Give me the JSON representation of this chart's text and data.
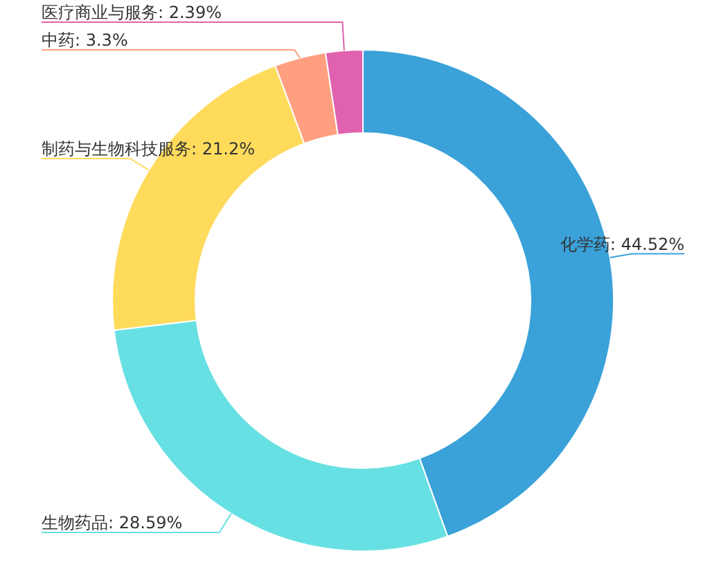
{
  "chart_data": {
    "type": "donut",
    "categories": [
      "化学药",
      "生物药品",
      "制药与生物科技服务",
      "中药",
      "医疗商业与服务"
    ],
    "values": [
      44.52,
      28.59,
      21.2,
      3.3,
      2.39
    ],
    "colors": [
      "#3aa1d9",
      "#67e0e3",
      "#ffdb5c",
      "#ff9f7f",
      "#e062ae"
    ],
    "value_labels": [
      "44.52%",
      "28.59%",
      "21.2%",
      "3.3%",
      "2.39%"
    ]
  }
}
